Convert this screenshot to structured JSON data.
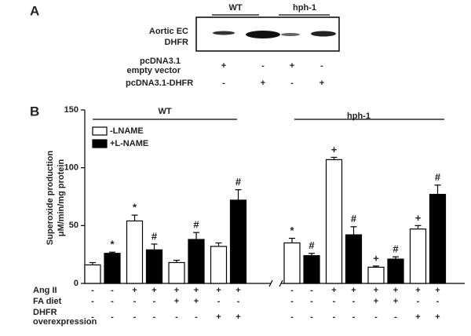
{
  "panel_a": {
    "label": "A",
    "groups": [
      "WT",
      "hph-1"
    ],
    "blot_label": [
      "Aortic EC",
      "DHFR"
    ],
    "rows": [
      {
        "label": [
          "pcDNA3.1",
          "empty vector"
        ],
        "signs": [
          "+",
          "-",
          "+",
          "-"
        ]
      },
      {
        "label": [
          "pcDNA3.1-DHFR"
        ],
        "signs": [
          "-",
          "+",
          "-",
          "+"
        ]
      }
    ]
  },
  "chart_data": {
    "type": "bar",
    "panel_label": "B",
    "y_label": [
      "Superoxide production",
      "μM/min/mg protein"
    ],
    "group_labels": [
      "WT",
      "hph-1"
    ],
    "categories": [
      null,
      null,
      null,
      null,
      null,
      null,
      null,
      null
    ],
    "ylim": [
      0,
      150
    ],
    "yticks": [
      0,
      50,
      100,
      150
    ],
    "series": [
      {
        "name": "-LNAME",
        "color": "#ffffff",
        "values": [
          16,
          54,
          18,
          32,
          35,
          107,
          14,
          47
        ],
        "errors": [
          2,
          5,
          2,
          3,
          4,
          2,
          1,
          3
        ],
        "annotations": [
          null,
          "*",
          null,
          null,
          "*",
          "+",
          "+",
          "+"
        ]
      },
      {
        "name": "+L-NAME",
        "color": "#000000",
        "values": [
          26,
          29,
          38,
          72,
          24,
          42,
          21,
          77
        ],
        "errors": [
          1,
          5,
          6,
          9,
          2,
          7,
          2,
          8
        ],
        "annotations": [
          "*",
          "#",
          "#",
          "#",
          "#",
          "#",
          "#",
          "#"
        ]
      }
    ],
    "conditions": [
      {
        "label": [
          "Ang II"
        ],
        "signs": [
          "-",
          "-",
          "+",
          "+",
          "+",
          "+",
          "+",
          "+",
          "-",
          "-",
          "+",
          "+",
          "+",
          "+",
          "+",
          "+"
        ]
      },
      {
        "label": [
          "FA diet"
        ],
        "signs": [
          "-",
          "-",
          "-",
          "-",
          "+",
          "+",
          "-",
          "-",
          "-",
          "-",
          "-",
          "-",
          "+",
          "+",
          "-",
          "-"
        ]
      },
      {
        "label": [
          "DHFR",
          "overexpression"
        ],
        "signs": [
          "-",
          "-",
          "-",
          "-",
          "-",
          "-",
          "+",
          "+",
          "-",
          "-",
          "-",
          "-",
          "-",
          "-",
          "+",
          "+"
        ]
      }
    ]
  }
}
